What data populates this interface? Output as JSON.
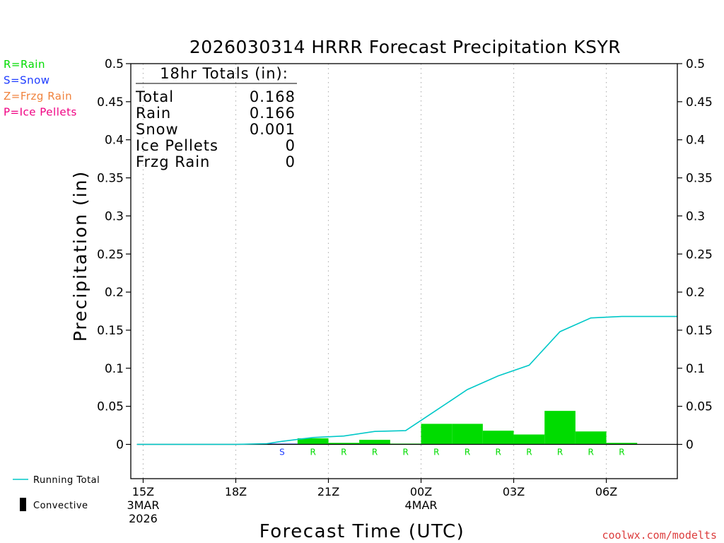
{
  "chart_data": {
    "type": "bar",
    "title": "2026030314 HRRR Forecast Precipitation KSYR",
    "xlabel": "Forecast Time (UTC)",
    "ylabel": "Precipitation (in)",
    "ylim": [
      -0.045,
      0.5
    ],
    "xlim": [
      14.6,
      32.3
    ],
    "grid": "vertical-dotted",
    "y_ticks": [
      {
        "v": 0,
        "label": "0"
      },
      {
        "v": 0.05,
        "label": "0.05"
      },
      {
        "v": 0.1,
        "label": "0.1"
      },
      {
        "v": 0.15,
        "label": "0.15"
      },
      {
        "v": 0.2,
        "label": "0.2"
      },
      {
        "v": 0.25,
        "label": "0.25"
      },
      {
        "v": 0.3,
        "label": "0.3"
      },
      {
        "v": 0.35,
        "label": "0.35"
      },
      {
        "v": 0.4,
        "label": "0.4"
      },
      {
        "v": 0.45,
        "label": "0.45"
      },
      {
        "v": 0.5,
        "label": "0.5"
      }
    ],
    "x_ticks": [
      {
        "v": 15,
        "lines": [
          "15Z",
          "3MAR",
          "2026"
        ]
      },
      {
        "v": 18,
        "lines": [
          "18Z"
        ]
      },
      {
        "v": 21,
        "lines": [
          "21Z"
        ]
      },
      {
        "v": 24,
        "lines": [
          "00Z",
          "4MAR"
        ]
      },
      {
        "v": 27,
        "lines": [
          "03Z"
        ]
      },
      {
        "v": 30,
        "lines": [
          "06Z"
        ]
      }
    ],
    "bars": [
      {
        "hour": 15,
        "value": 0,
        "type": ""
      },
      {
        "hour": 16,
        "value": 0,
        "type": ""
      },
      {
        "hour": 17,
        "value": 0,
        "type": ""
      },
      {
        "hour": 18,
        "value": 0,
        "type": ""
      },
      {
        "hour": 19,
        "value": 0.001,
        "type": "S"
      },
      {
        "hour": 20,
        "value": 0.008,
        "type": "R"
      },
      {
        "hour": 21,
        "value": 0.002,
        "type": "R"
      },
      {
        "hour": 22,
        "value": 0.006,
        "type": "R"
      },
      {
        "hour": 23,
        "value": 0.001,
        "type": "R"
      },
      {
        "hour": 24,
        "value": 0.027,
        "type": "R"
      },
      {
        "hour": 25,
        "value": 0.027,
        "type": "R"
      },
      {
        "hour": 26,
        "value": 0.018,
        "type": "R"
      },
      {
        "hour": 27,
        "value": 0.013,
        "type": "R"
      },
      {
        "hour": 28,
        "value": 0.044,
        "type": "R"
      },
      {
        "hour": 29,
        "value": 0.017,
        "type": "R"
      },
      {
        "hour": 30,
        "value": 0.002,
        "type": "R"
      },
      {
        "hour": 31,
        "value": 0,
        "type": ""
      },
      {
        "hour": 32,
        "value": 0,
        "type": ""
      }
    ],
    "running_total": {
      "x": [
        14.8,
        18,
        19,
        19.5,
        20.5,
        21.5,
        22.5,
        23.5,
        24.5,
        25.5,
        26.5,
        27.5,
        28.5,
        29.5,
        30.5,
        31.5,
        32.3
      ],
      "y": [
        0,
        0,
        0.001,
        0.004,
        0.009,
        0.011,
        0.017,
        0.018,
        0.045,
        0.072,
        0.09,
        0.104,
        0.148,
        0.166,
        0.168,
        0.168,
        0.168
      ]
    },
    "colors": {
      "rain": "#00dc00",
      "snow": "#1e3cff",
      "frzg_rain": "#f0823c",
      "ice_pellets": "#f00082",
      "running_total": "#00c8c8",
      "convective": "#000000"
    },
    "type_legend": [
      {
        "text": "R=Rain",
        "color": "#00dc00"
      },
      {
        "text": "S=Snow",
        "color": "#1e3cff"
      },
      {
        "text": "Z=Frzg Rain",
        "color": "#f0823c"
      },
      {
        "text": "P=Ice Pellets",
        "color": "#f00082"
      }
    ],
    "totals": {
      "heading": "18hr Totals (in):",
      "rows": [
        {
          "label": "Total",
          "value": "0.168"
        },
        {
          "label": "Rain",
          "value": "0.166"
        },
        {
          "label": "Snow",
          "value": "0.001"
        },
        {
          "label": "Ice Pellets",
          "value": "0"
        },
        {
          "label": "Frzg Rain",
          "value": "0"
        }
      ]
    },
    "series_legend": {
      "running_total": "Running Total",
      "convective": "Convective"
    },
    "credit": "coolwx.com/modelts"
  }
}
